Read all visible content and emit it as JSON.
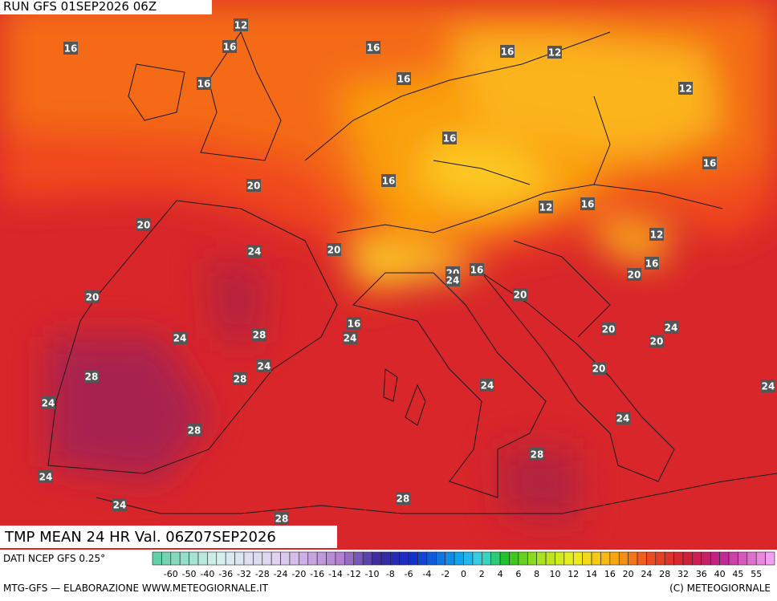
{
  "header": {
    "run": "RUN GFS 01SEP2026 06Z"
  },
  "map": {
    "title": "TMP MEAN 24 HR Val. 06Z07SEP2026",
    "labels": [
      "12",
      "16",
      "16",
      "16",
      "16",
      "12",
      "16",
      "16",
      "12",
      "16",
      "16",
      "16",
      "20",
      "12",
      "16",
      "20",
      "12",
      "24",
      "20",
      "16",
      "20",
      "16",
      "24",
      "20",
      "20",
      "20",
      "16",
      "20",
      "24",
      "28",
      "24",
      "24",
      "20",
      "24",
      "28",
      "28",
      "20",
      "24",
      "24",
      "24",
      "24",
      "28",
      "28",
      "24",
      "28",
      "24",
      "28"
    ]
  },
  "footer": {
    "source": "DATI NCEP GFS 0.25°",
    "credit": "MTG-GFS — ELABORAZIONE WWW.METEOGIORNALE.IT",
    "copyright": "(C) METEOGIORNALE",
    "colorbar_labels": [
      "-60",
      "-50",
      "-40",
      "-36",
      "-32",
      "-28",
      "-24",
      "-20",
      "-16",
      "-14",
      "-12",
      "-10",
      "-8",
      "-6",
      "-4",
      "-2",
      "0",
      "2",
      "4",
      "6",
      "8",
      "10",
      "12",
      "14",
      "16",
      "20",
      "24",
      "28",
      "32",
      "36",
      "40",
      "45",
      "55"
    ]
  }
}
